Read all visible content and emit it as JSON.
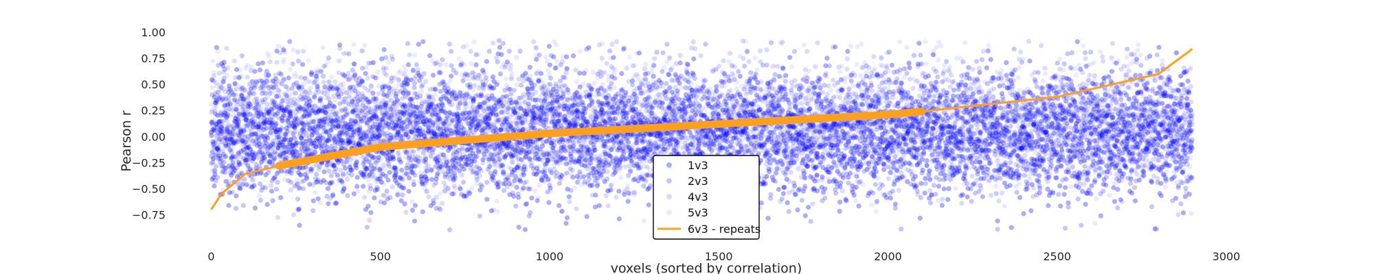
{
  "chart_data": {
    "type": "scatter",
    "title": "",
    "xlabel": "voxels (sorted by correlation)",
    "ylabel": "Pearson r",
    "xlim": [
      -5,
      3000
    ],
    "ylim": [
      -0.95,
      1.0
    ],
    "xticks": [
      0,
      500,
      1000,
      1500,
      2000,
      2500,
      3000
    ],
    "xtick_labels": [
      "0",
      "500",
      "1000",
      "1500",
      "2000",
      "2500",
      "3000"
    ],
    "yticks": [
      1.0,
      0.75,
      0.5,
      0.25,
      0.0,
      -0.25,
      -0.5,
      -0.75
    ],
    "ytick_labels": [
      "1.00",
      "0.75",
      "0.50",
      "0.25",
      "0.00",
      "−0.25",
      "−0.50",
      "−0.75"
    ],
    "grid": false,
    "legend_position": "bottom-center",
    "n_points": 2900,
    "scatter_series": [
      {
        "name": "1v3",
        "color": "#0000ff",
        "opacity": 0.32,
        "mean": 0.0,
        "spread": 0.36
      },
      {
        "name": "2v3",
        "color": "#0000ff",
        "opacity": 0.22,
        "mean": 0.05,
        "spread": 0.36
      },
      {
        "name": "4v3",
        "color": "#0000ff",
        "opacity": 0.14,
        "mean": 0.1,
        "spread": 0.34
      },
      {
        "name": "5v3",
        "color": "#0000ff",
        "opacity": 0.08,
        "mean": 0.15,
        "spread": 0.34
      }
    ],
    "line_series": {
      "name": "6v3 - repeats",
      "color": "#ffa01c",
      "x": [
        0,
        30,
        100,
        200,
        500,
        1000,
        1500,
        2000,
        2100,
        2500,
        2800,
        2900
      ],
      "y": [
        -0.7,
        -0.55,
        -0.36,
        -0.28,
        -0.1,
        0.03,
        0.12,
        0.21,
        0.24,
        0.38,
        0.6,
        0.84
      ]
    }
  }
}
